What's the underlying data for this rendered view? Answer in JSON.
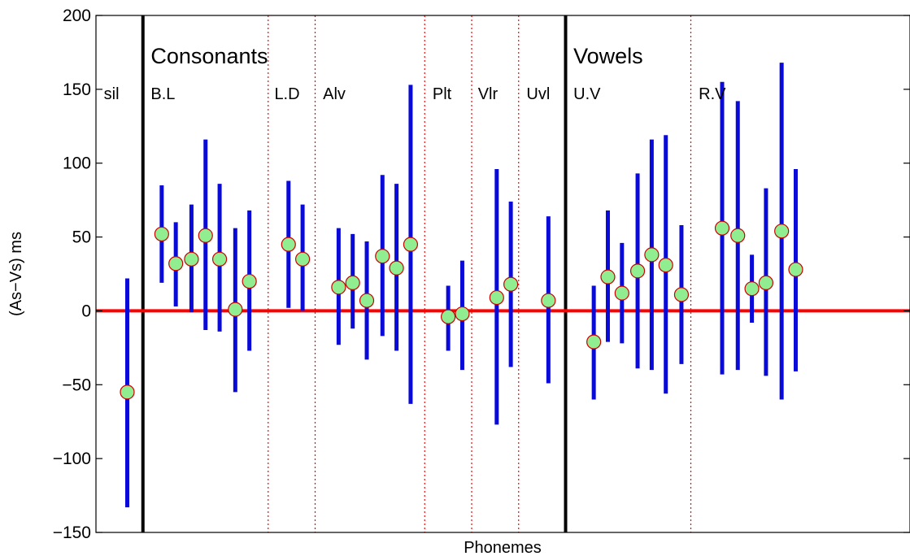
{
  "chart_data": {
    "type": "scatter",
    "xlabel": "Phonemes",
    "ylabel": "(As−Vs) ms",
    "ylim": [
      -150,
      200
    ],
    "yticks": [
      -150,
      -100,
      -50,
      0,
      50,
      100,
      150,
      200
    ],
    "ytick_labels": [
      "−150",
      "−100",
      "−50",
      "0",
      "50",
      "100",
      "150",
      "200"
    ],
    "xlim": [
      0,
      52
    ],
    "reference_line": {
      "y": 0,
      "color": "#ff0000"
    },
    "section_boundaries": [
      3,
      30
    ],
    "group_boundaries": [
      11,
      14,
      21,
      24,
      27,
      38
    ],
    "sections": [
      {
        "label": "Consonants",
        "x": 3.5
      },
      {
        "label": "Vowels",
        "x": 30.5
      }
    ],
    "groups": [
      {
        "label": "sil",
        "x": 0.5
      },
      {
        "label": "B.L",
        "x": 3.5
      },
      {
        "label": "L.D",
        "x": 11.4
      },
      {
        "label": "Alv",
        "x": 14.5
      },
      {
        "label": "Plt",
        "x": 21.5
      },
      {
        "label": "Vlr",
        "x": 24.4
      },
      {
        "label": "Uvl",
        "x": 27.5
      },
      {
        "label": "U.V",
        "x": 30.5
      },
      {
        "label": "R.V",
        "x": 38.5
      }
    ],
    "points": [
      {
        "x": 2,
        "y": -55,
        "low": -133,
        "high": 22
      },
      {
        "x": 4.2,
        "y": 52,
        "low": 19,
        "high": 85
      },
      {
        "x": 5.1,
        "y": 32,
        "low": 3,
        "high": 60
      },
      {
        "x": 6.1,
        "y": 35,
        "low": -1,
        "high": 72
      },
      {
        "x": 7.0,
        "y": 51,
        "low": -13,
        "high": 116
      },
      {
        "x": 7.9,
        "y": 35,
        "low": -14,
        "high": 86
      },
      {
        "x": 8.9,
        "y": 1,
        "low": -55,
        "high": 56
      },
      {
        "x": 9.8,
        "y": 20,
        "low": -27,
        "high": 68
      },
      {
        "x": 12.3,
        "y": 45,
        "low": 2,
        "high": 88
      },
      {
        "x": 13.2,
        "y": 35,
        "low": 0,
        "high": 72
      },
      {
        "x": 15.5,
        "y": 16,
        "low": -23,
        "high": 56
      },
      {
        "x": 16.4,
        "y": 19,
        "low": -12,
        "high": 52
      },
      {
        "x": 17.3,
        "y": 7,
        "low": -33,
        "high": 47
      },
      {
        "x": 18.3,
        "y": 37,
        "low": -17,
        "high": 92
      },
      {
        "x": 19.2,
        "y": 29,
        "low": -27,
        "high": 86
      },
      {
        "x": 20.1,
        "y": 45,
        "low": -63,
        "high": 153
      },
      {
        "x": 22.5,
        "y": -4,
        "low": -27,
        "high": 17
      },
      {
        "x": 23.4,
        "y": -2,
        "low": -40,
        "high": 34
      },
      {
        "x": 25.6,
        "y": 9,
        "low": -77,
        "high": 96
      },
      {
        "x": 26.5,
        "y": 18,
        "low": -38,
        "high": 74
      },
      {
        "x": 28.9,
        "y": 7,
        "low": -49,
        "high": 64
      },
      {
        "x": 31.8,
        "y": -21,
        "low": -60,
        "high": 17
      },
      {
        "x": 32.7,
        "y": 23,
        "low": -21,
        "high": 68
      },
      {
        "x": 33.6,
        "y": 12,
        "low": -22,
        "high": 46
      },
      {
        "x": 34.6,
        "y": 27,
        "low": -39,
        "high": 93
      },
      {
        "x": 35.5,
        "y": 38,
        "low": -40,
        "high": 116
      },
      {
        "x": 36.4,
        "y": 31,
        "low": -56,
        "high": 119
      },
      {
        "x": 37.4,
        "y": 11,
        "low": -36,
        "high": 58
      },
      {
        "x": 40.0,
        "y": 56,
        "low": -43,
        "high": 155
      },
      {
        "x": 41.0,
        "y": 51,
        "low": -40,
        "high": 142
      },
      {
        "x": 41.9,
        "y": 15,
        "low": -8,
        "high": 38
      },
      {
        "x": 42.8,
        "y": 19,
        "low": -44,
        "high": 83
      },
      {
        "x": 43.8,
        "y": 54,
        "low": -60,
        "high": 168
      },
      {
        "x": 44.7,
        "y": 28,
        "low": -41,
        "high": 96
      }
    ],
    "colors": {
      "errorbar": "#0a0ad8",
      "marker_fill": "#90ee90",
      "marker_edge": "#cc0000",
      "zero_line": "#ff0000",
      "boundary_solid": "#000000",
      "boundary_dotted": "#ff0000"
    }
  }
}
